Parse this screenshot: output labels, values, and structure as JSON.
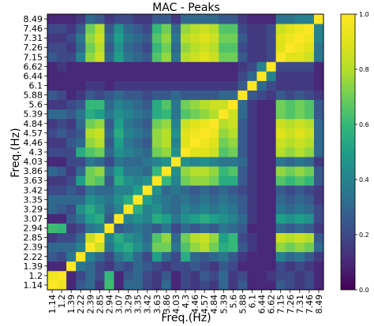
{
  "chart_data": {
    "type": "heatmap",
    "title": "MAC - Peaks",
    "xlabel": "Freq.(Hz)",
    "ylabel": "Freq.(Hz)",
    "labels": [
      "1.14",
      "1.2",
      "1.39",
      "2.22",
      "2.39",
      "2.85",
      "2.94",
      "3.07",
      "3.29",
      "3.35",
      "3.42",
      "3.63",
      "3.86",
      "4.03",
      "4.3",
      "4.46",
      "4.57",
      "4.84",
      "5.39",
      "5.6",
      "5.88",
      "6.1",
      "6.44",
      "6.62",
      "7.15",
      "7.26",
      "7.31",
      "7.46",
      "8.49"
    ],
    "y_order": "ascending-upward",
    "colormap": "viridis",
    "colors": {
      "low": "#440154",
      "mid": "#21918c",
      "high": "#fde725"
    },
    "vmin": 0,
    "vmax": 1,
    "colorbar_ticks": [
      "0.0",
      "0.2",
      "0.4",
      "0.6",
      "0.8",
      "1.0"
    ],
    "matrix": [
      [
        1.0,
        0.95,
        0.1,
        0.25,
        0.3,
        0.15,
        0.62,
        0.1,
        0.3,
        0.3,
        0.2,
        0.15,
        0.3,
        0.1,
        0.2,
        0.15,
        0.2,
        0.15,
        0.3,
        0.15,
        0.25,
        0.1,
        0.1,
        0.1,
        0.25,
        0.2,
        0.15,
        0.2,
        0.1
      ],
      [
        0.95,
        1.0,
        0.1,
        0.2,
        0.3,
        0.2,
        0.6,
        0.1,
        0.25,
        0.3,
        0.2,
        0.15,
        0.25,
        0.1,
        0.2,
        0.15,
        0.25,
        0.2,
        0.3,
        0.15,
        0.2,
        0.1,
        0.1,
        0.15,
        0.2,
        0.2,
        0.15,
        0.2,
        0.1
      ],
      [
        0.1,
        0.1,
        1.0,
        0.35,
        0.3,
        0.2,
        0.15,
        0.25,
        0.2,
        0.3,
        0.25,
        0.2,
        0.15,
        0.2,
        0.2,
        0.25,
        0.2,
        0.15,
        0.25,
        0.2,
        0.1,
        0.1,
        0.1,
        0.1,
        0.2,
        0.15,
        0.2,
        0.15,
        0.1
      ],
      [
        0.25,
        0.2,
        0.35,
        1.0,
        0.4,
        0.3,
        0.2,
        0.35,
        0.45,
        0.3,
        0.2,
        0.5,
        0.3,
        0.2,
        0.55,
        0.3,
        0.25,
        0.3,
        0.35,
        0.25,
        0.15,
        0.1,
        0.1,
        0.1,
        0.4,
        0.3,
        0.35,
        0.25,
        0.15
      ],
      [
        0.3,
        0.3,
        0.3,
        0.4,
        1.0,
        0.85,
        0.35,
        0.5,
        0.55,
        0.45,
        0.35,
        0.7,
        0.7,
        0.35,
        0.65,
        0.75,
        0.8,
        0.7,
        0.55,
        0.6,
        0.25,
        0.15,
        0.1,
        0.1,
        0.75,
        0.7,
        0.75,
        0.7,
        0.3
      ],
      [
        0.15,
        0.2,
        0.2,
        0.3,
        0.85,
        1.0,
        0.4,
        0.55,
        0.45,
        0.4,
        0.3,
        0.65,
        0.75,
        0.3,
        0.7,
        0.8,
        0.85,
        0.75,
        0.5,
        0.6,
        0.2,
        0.15,
        0.1,
        0.1,
        0.85,
        0.8,
        0.85,
        0.8,
        0.25
      ],
      [
        0.62,
        0.6,
        0.15,
        0.2,
        0.35,
        0.4,
        1.0,
        0.25,
        0.3,
        0.35,
        0.3,
        0.25,
        0.35,
        0.2,
        0.3,
        0.25,
        0.3,
        0.25,
        0.35,
        0.3,
        0.25,
        0.1,
        0.1,
        0.1,
        0.3,
        0.25,
        0.3,
        0.25,
        0.15
      ],
      [
        0.1,
        0.1,
        0.25,
        0.35,
        0.5,
        0.55,
        0.25,
        1.0,
        0.4,
        0.45,
        0.4,
        0.55,
        0.5,
        0.35,
        0.45,
        0.5,
        0.55,
        0.5,
        0.45,
        0.4,
        0.3,
        0.15,
        0.1,
        0.1,
        0.5,
        0.45,
        0.5,
        0.45,
        0.2
      ],
      [
        0.3,
        0.25,
        0.2,
        0.45,
        0.55,
        0.45,
        0.3,
        0.4,
        1.0,
        0.55,
        0.4,
        0.45,
        0.35,
        0.3,
        0.4,
        0.35,
        0.4,
        0.35,
        0.4,
        0.35,
        0.25,
        0.15,
        0.1,
        0.1,
        0.35,
        0.3,
        0.35,
        0.3,
        0.2
      ],
      [
        0.3,
        0.3,
        0.3,
        0.3,
        0.45,
        0.4,
        0.35,
        0.45,
        0.55,
        1.0,
        0.5,
        0.4,
        0.35,
        0.3,
        0.35,
        0.3,
        0.35,
        0.3,
        0.35,
        0.3,
        0.25,
        0.15,
        0.1,
        0.1,
        0.3,
        0.25,
        0.3,
        0.25,
        0.15
      ],
      [
        0.2,
        0.2,
        0.25,
        0.2,
        0.35,
        0.3,
        0.3,
        0.4,
        0.4,
        0.5,
        1.0,
        0.45,
        0.3,
        0.35,
        0.3,
        0.25,
        0.3,
        0.25,
        0.3,
        0.25,
        0.2,
        0.15,
        0.1,
        0.1,
        0.25,
        0.2,
        0.25,
        0.2,
        0.15
      ],
      [
        0.15,
        0.15,
        0.2,
        0.5,
        0.7,
        0.65,
        0.25,
        0.55,
        0.45,
        0.4,
        0.45,
        1.0,
        0.6,
        0.4,
        0.7,
        0.75,
        0.75,
        0.7,
        0.55,
        0.55,
        0.25,
        0.15,
        0.1,
        0.1,
        0.65,
        0.6,
        0.65,
        0.6,
        0.25
      ],
      [
        0.3,
        0.25,
        0.15,
        0.3,
        0.7,
        0.75,
        0.35,
        0.5,
        0.35,
        0.35,
        0.3,
        0.6,
        1.0,
        0.45,
        0.75,
        0.8,
        0.8,
        0.75,
        0.6,
        0.65,
        0.25,
        0.15,
        0.1,
        0.1,
        0.75,
        0.7,
        0.75,
        0.7,
        0.25
      ],
      [
        0.1,
        0.1,
        0.2,
        0.2,
        0.35,
        0.3,
        0.2,
        0.35,
        0.3,
        0.3,
        0.35,
        0.4,
        0.45,
        1.0,
        0.45,
        0.4,
        0.45,
        0.4,
        0.35,
        0.35,
        0.3,
        0.15,
        0.1,
        0.1,
        0.35,
        0.3,
        0.35,
        0.3,
        0.15
      ],
      [
        0.2,
        0.2,
        0.2,
        0.55,
        0.65,
        0.7,
        0.3,
        0.45,
        0.4,
        0.35,
        0.3,
        0.7,
        0.75,
        0.45,
        1.0,
        0.9,
        0.9,
        0.85,
        0.65,
        0.7,
        0.25,
        0.15,
        0.1,
        0.1,
        0.8,
        0.75,
        0.8,
        0.75,
        0.3
      ],
      [
        0.15,
        0.15,
        0.25,
        0.3,
        0.75,
        0.8,
        0.25,
        0.5,
        0.35,
        0.3,
        0.25,
        0.75,
        0.8,
        0.4,
        0.9,
        1.0,
        0.95,
        0.9,
        0.7,
        0.75,
        0.25,
        0.15,
        0.1,
        0.1,
        0.85,
        0.8,
        0.85,
        0.8,
        0.3
      ],
      [
        0.2,
        0.25,
        0.2,
        0.25,
        0.8,
        0.85,
        0.3,
        0.55,
        0.4,
        0.35,
        0.3,
        0.75,
        0.8,
        0.45,
        0.9,
        0.95,
        1.0,
        0.95,
        0.75,
        0.8,
        0.25,
        0.15,
        0.1,
        0.1,
        0.9,
        0.85,
        0.9,
        0.85,
        0.3
      ],
      [
        0.15,
        0.2,
        0.15,
        0.3,
        0.7,
        0.75,
        0.25,
        0.5,
        0.35,
        0.3,
        0.25,
        0.7,
        0.75,
        0.4,
        0.85,
        0.9,
        0.95,
        1.0,
        0.8,
        0.85,
        0.25,
        0.15,
        0.1,
        0.1,
        0.85,
        0.8,
        0.85,
        0.8,
        0.3
      ],
      [
        0.3,
        0.3,
        0.25,
        0.35,
        0.55,
        0.5,
        0.35,
        0.45,
        0.4,
        0.35,
        0.3,
        0.55,
        0.6,
        0.35,
        0.65,
        0.7,
        0.75,
        0.8,
        1.0,
        0.85,
        0.3,
        0.15,
        0.1,
        0.1,
        0.7,
        0.65,
        0.7,
        0.65,
        0.25
      ],
      [
        0.15,
        0.15,
        0.2,
        0.25,
        0.6,
        0.6,
        0.3,
        0.4,
        0.35,
        0.3,
        0.25,
        0.55,
        0.65,
        0.35,
        0.7,
        0.75,
        0.8,
        0.85,
        0.85,
        1.0,
        0.3,
        0.15,
        0.1,
        0.1,
        0.7,
        0.65,
        0.7,
        0.65,
        0.25
      ],
      [
        0.25,
        0.2,
        0.1,
        0.15,
        0.25,
        0.2,
        0.25,
        0.3,
        0.25,
        0.25,
        0.2,
        0.25,
        0.25,
        0.3,
        0.25,
        0.25,
        0.25,
        0.25,
        0.3,
        0.3,
        1.0,
        0.25,
        0.2,
        0.15,
        0.25,
        0.2,
        0.25,
        0.2,
        0.15
      ],
      [
        0.1,
        0.1,
        0.1,
        0.1,
        0.15,
        0.15,
        0.1,
        0.15,
        0.15,
        0.15,
        0.15,
        0.15,
        0.15,
        0.15,
        0.15,
        0.15,
        0.15,
        0.15,
        0.15,
        0.15,
        0.25,
        1.0,
        0.3,
        0.2,
        0.15,
        0.15,
        0.15,
        0.15,
        0.1
      ],
      [
        0.1,
        0.1,
        0.1,
        0.1,
        0.1,
        0.1,
        0.1,
        0.1,
        0.1,
        0.1,
        0.1,
        0.1,
        0.1,
        0.1,
        0.1,
        0.1,
        0.1,
        0.1,
        0.1,
        0.1,
        0.2,
        0.3,
        1.0,
        0.4,
        0.15,
        0.15,
        0.15,
        0.15,
        0.1
      ],
      [
        0.1,
        0.15,
        0.1,
        0.1,
        0.1,
        0.1,
        0.1,
        0.1,
        0.1,
        0.1,
        0.1,
        0.1,
        0.1,
        0.1,
        0.1,
        0.1,
        0.1,
        0.1,
        0.1,
        0.1,
        0.15,
        0.2,
        0.4,
        1.0,
        0.2,
        0.2,
        0.2,
        0.2,
        0.1
      ],
      [
        0.25,
        0.2,
        0.2,
        0.4,
        0.75,
        0.85,
        0.3,
        0.5,
        0.35,
        0.3,
        0.25,
        0.65,
        0.75,
        0.35,
        0.8,
        0.85,
        0.9,
        0.85,
        0.7,
        0.7,
        0.25,
        0.15,
        0.15,
        0.2,
        1.0,
        0.9,
        0.9,
        0.85,
        0.35
      ],
      [
        0.2,
        0.2,
        0.15,
        0.3,
        0.7,
        0.8,
        0.25,
        0.45,
        0.3,
        0.25,
        0.2,
        0.6,
        0.7,
        0.3,
        0.75,
        0.8,
        0.85,
        0.8,
        0.65,
        0.65,
        0.2,
        0.15,
        0.15,
        0.2,
        0.9,
        1.0,
        0.95,
        0.9,
        0.35
      ],
      [
        0.15,
        0.15,
        0.2,
        0.35,
        0.75,
        0.85,
        0.3,
        0.5,
        0.35,
        0.3,
        0.25,
        0.65,
        0.75,
        0.35,
        0.8,
        0.85,
        0.9,
        0.85,
        0.7,
        0.7,
        0.25,
        0.15,
        0.15,
        0.2,
        0.9,
        0.95,
        1.0,
        0.95,
        0.4
      ],
      [
        0.2,
        0.2,
        0.15,
        0.25,
        0.7,
        0.8,
        0.25,
        0.45,
        0.3,
        0.25,
        0.2,
        0.6,
        0.7,
        0.3,
        0.75,
        0.8,
        0.85,
        0.8,
        0.65,
        0.65,
        0.2,
        0.15,
        0.15,
        0.2,
        0.85,
        0.9,
        0.95,
        1.0,
        0.4
      ],
      [
        0.1,
        0.1,
        0.1,
        0.15,
        0.3,
        0.25,
        0.15,
        0.2,
        0.2,
        0.15,
        0.15,
        0.25,
        0.25,
        0.15,
        0.3,
        0.3,
        0.3,
        0.3,
        0.25,
        0.25,
        0.15,
        0.1,
        0.1,
        0.1,
        0.35,
        0.35,
        0.4,
        0.4,
        1.0
      ]
    ]
  }
}
